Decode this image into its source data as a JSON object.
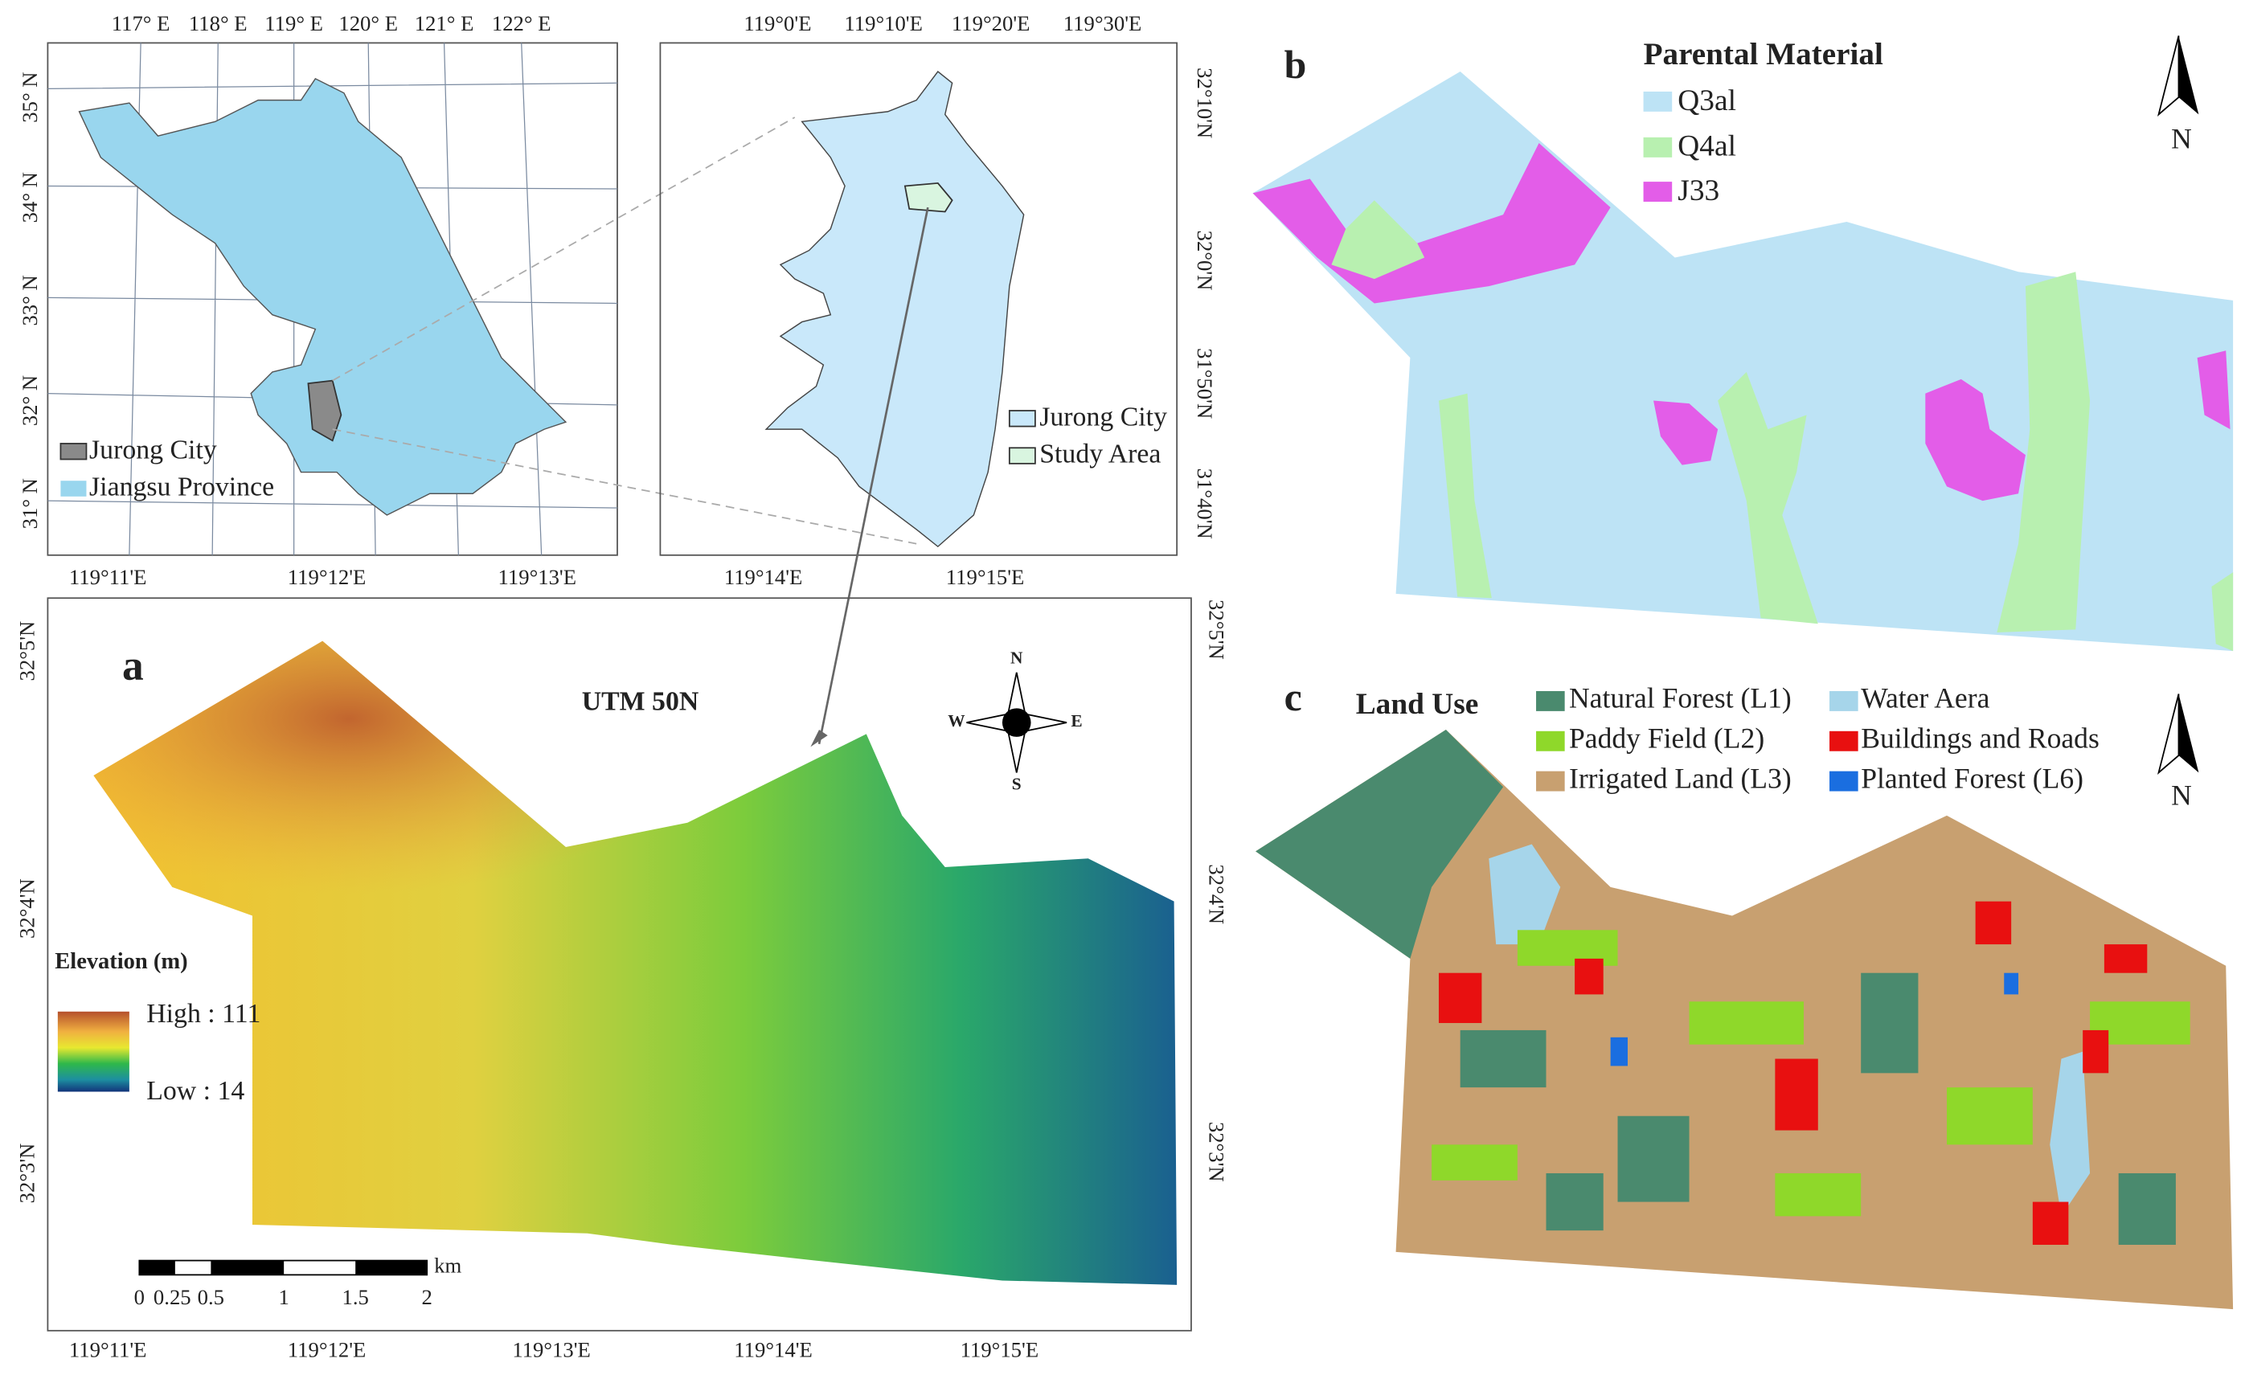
{
  "inset_jiangsu": {
    "top_labels": [
      "117° E",
      "118° E",
      "119° E",
      "120° E",
      "121° E",
      "122° E"
    ],
    "left_labels": [
      "35° N",
      "34° N",
      "33° N",
      "32° N",
      "31° N"
    ],
    "legend": [
      "Jurong City",
      "Jiangsu Province"
    ]
  },
  "inset_jurong": {
    "top_labels": [
      "119°0'E",
      "119°10'E",
      "119°20'E",
      "119°30'E"
    ],
    "right_labels": [
      "32°10'N",
      "32°0'N",
      "31°50'N",
      "31°40'N"
    ],
    "legend": [
      "Jurong City",
      "Study Area"
    ]
  },
  "panel_a": {
    "label": "a",
    "projection": "UTM 50N",
    "top_labels": [
      "119°11'E",
      "119°12'E",
      "119°13'E",
      "119°14'E",
      "119°15'E"
    ],
    "bottom_labels": [
      "119°11'E",
      "119°12'E",
      "119°13'E",
      "119°14'E",
      "119°15'E"
    ],
    "left_labels": [
      "32°5'N",
      "32°4'N",
      "32°3'N"
    ],
    "right_labels": [
      "32°5'N",
      "32°4'N",
      "32°3'N"
    ],
    "compass": [
      "N",
      "W",
      "E",
      "S"
    ],
    "legend_title": "Elevation (m)",
    "high": "High : 111",
    "low": "Low : 14",
    "scale_ticks": [
      "0",
      "0.25",
      "0.5",
      "1",
      "1.5",
      "2"
    ],
    "scale_unit": "km"
  },
  "panel_b": {
    "label": "b",
    "legend_title": "Parental Material",
    "legend": [
      "Q3al",
      "Q4al",
      "J33"
    ],
    "north": "N"
  },
  "panel_c": {
    "label": "c",
    "legend_title": "Land Use",
    "legend": [
      "Natural Forest (L1)",
      "Paddy Field (L2)",
      "Irrigated Land (L3)",
      "Water Aera",
      "Buildings and Roads",
      "Planted Forest (L6)"
    ],
    "north": "N"
  }
}
